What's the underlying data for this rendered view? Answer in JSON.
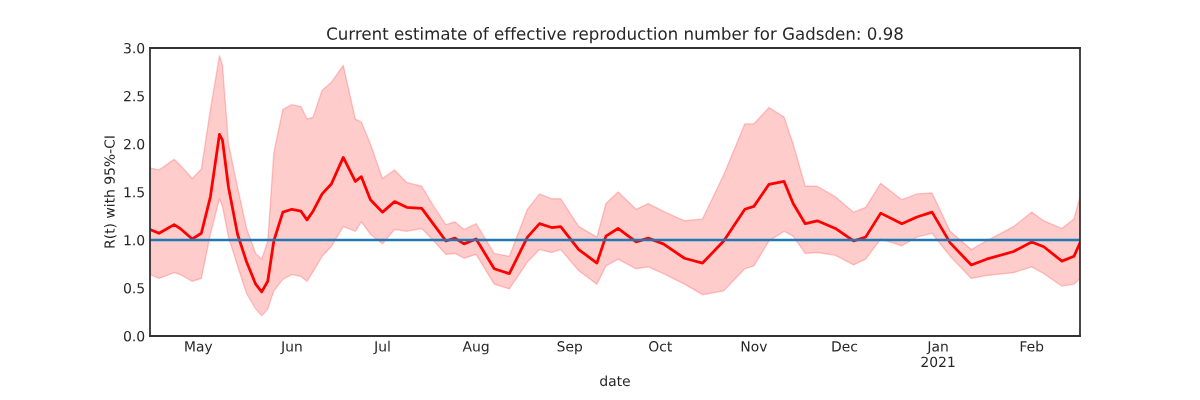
{
  "chart_data": {
    "type": "line",
    "title": "Current estimate of effective reproduction number for Gadsden: 0.98",
    "xlabel": "date",
    "ylabel": "R(t) with 95%-CI",
    "x": [
      "2020-04-15",
      "2020-04-18",
      "2020-04-23",
      "2020-04-25",
      "2020-04-29",
      "2020-05-02",
      "2020-05-05",
      "2020-05-08",
      "2020-05-09",
      "2020-05-11",
      "2020-05-14",
      "2020-05-17",
      "2020-05-20",
      "2020-05-22",
      "2020-05-24",
      "2020-05-26",
      "2020-05-29",
      "2020-06-01",
      "2020-06-04",
      "2020-06-06",
      "2020-06-08",
      "2020-06-11",
      "2020-06-14",
      "2020-06-18",
      "2020-06-22",
      "2020-06-24",
      "2020-06-27",
      "2020-07-01",
      "2020-07-05",
      "2020-07-09",
      "2020-07-14",
      "2020-07-18",
      "2020-07-22",
      "2020-07-25",
      "2020-07-28",
      "2020-08-01",
      "2020-08-07",
      "2020-08-12",
      "2020-08-18",
      "2020-08-22",
      "2020-08-26",
      "2020-08-29",
      "2020-09-04",
      "2020-09-10",
      "2020-09-13",
      "2020-09-17",
      "2020-09-23",
      "2020-09-27",
      "2020-10-02",
      "2020-10-09",
      "2020-10-15",
      "2020-10-22",
      "2020-10-29",
      "2020-11-01",
      "2020-11-06",
      "2020-11-11",
      "2020-11-14",
      "2020-11-18",
      "2020-11-22",
      "2020-11-28",
      "2020-12-04",
      "2020-12-08",
      "2020-12-13",
      "2020-12-20",
      "2020-12-25",
      "2020-12-30",
      "2021-01-05",
      "2021-01-12",
      "2021-01-17",
      "2021-01-26",
      "2021-02-01",
      "2021-02-05",
      "2021-02-11",
      "2021-02-15",
      "2021-02-17"
    ],
    "series": [
      {
        "color": "#ff0000",
        "values": [
          1.11,
          1.07,
          1.16,
          1.12,
          1.01,
          1.07,
          1.45,
          2.1,
          2.04,
          1.55,
          1.06,
          0.77,
          0.54,
          0.46,
          0.57,
          0.99,
          1.29,
          1.32,
          1.3,
          1.21,
          1.3,
          1.48,
          1.58,
          1.86,
          1.61,
          1.66,
          1.42,
          1.29,
          1.4,
          1.34,
          1.33,
          1.16,
          0.99,
          1.02,
          0.96,
          1.01,
          0.7,
          0.65,
          1.03,
          1.17,
          1.13,
          1.14,
          0.9,
          0.76,
          1.04,
          1.12,
          0.98,
          1.02,
          0.96,
          0.81,
          0.76,
          0.99,
          1.32,
          1.35,
          1.58,
          1.61,
          1.38,
          1.17,
          1.2,
          1.12,
          0.99,
          1.03,
          1.28,
          1.17,
          1.24,
          1.29,
          0.97,
          0.74,
          0.8,
          0.88,
          0.98,
          0.93,
          0.78,
          0.83,
          0.97
        ],
        "upper": [
          1.75,
          1.73,
          1.84,
          1.78,
          1.64,
          1.74,
          2.36,
          2.92,
          2.82,
          2.0,
          1.55,
          1.12,
          0.86,
          0.8,
          0.99,
          1.91,
          2.36,
          2.41,
          2.39,
          2.26,
          2.28,
          2.56,
          2.64,
          2.82,
          2.26,
          2.23,
          2.0,
          1.64,
          1.73,
          1.6,
          1.56,
          1.35,
          1.16,
          1.19,
          1.11,
          1.17,
          0.86,
          0.83,
          1.32,
          1.48,
          1.43,
          1.43,
          1.14,
          1.03,
          1.38,
          1.5,
          1.32,
          1.38,
          1.3,
          1.2,
          1.22,
          1.68,
          2.21,
          2.21,
          2.38,
          2.28,
          2.0,
          1.56,
          1.56,
          1.45,
          1.29,
          1.34,
          1.59,
          1.42,
          1.48,
          1.49,
          1.09,
          0.9,
          0.99,
          1.14,
          1.29,
          1.2,
          1.12,
          1.22,
          1.45
        ],
        "lower": [
          0.64,
          0.6,
          0.66,
          0.64,
          0.57,
          0.6,
          1.06,
          1.43,
          1.35,
          1.03,
          0.73,
          0.44,
          0.28,
          0.21,
          0.28,
          0.47,
          0.59,
          0.64,
          0.62,
          0.57,
          0.67,
          0.83,
          0.93,
          1.14,
          1.09,
          1.19,
          1.06,
          0.96,
          1.11,
          1.09,
          1.12,
          0.99,
          0.85,
          0.86,
          0.81,
          0.85,
          0.54,
          0.49,
          0.77,
          0.9,
          0.87,
          0.9,
          0.68,
          0.54,
          0.73,
          0.8,
          0.7,
          0.72,
          0.65,
          0.54,
          0.43,
          0.47,
          0.7,
          0.73,
          0.99,
          1.09,
          1.04,
          0.86,
          0.87,
          0.84,
          0.74,
          0.8,
          1.01,
          0.94,
          1.03,
          1.07,
          0.83,
          0.6,
          0.63,
          0.66,
          0.72,
          0.65,
          0.52,
          0.54,
          0.6
        ]
      }
    ],
    "ref_lines": [
      {
        "axis": "y",
        "value": 1.0,
        "color": "#1f77b4"
      }
    ],
    "xlim": [
      "2020-04-15",
      "2021-02-17"
    ],
    "xticks": [
      {
        "value": "2020-05-01",
        "label": "May"
      },
      {
        "value": "2020-06-01",
        "label": "Jun"
      },
      {
        "value": "2020-07-01",
        "label": "Jul"
      },
      {
        "value": "2020-08-01",
        "label": "Aug"
      },
      {
        "value": "2020-09-01",
        "label": "Sep"
      },
      {
        "value": "2020-10-01",
        "label": "Oct"
      },
      {
        "value": "2020-11-01",
        "label": "Nov"
      },
      {
        "value": "2020-12-01",
        "label": "Dec"
      },
      {
        "value": "2021-01-01",
        "label": "Jan\n2021"
      },
      {
        "value": "2021-02-01",
        "label": "Feb"
      }
    ],
    "ylim": [
      0,
      3.0
    ],
    "yticks": [
      {
        "value": 0,
        "label": "0.0"
      },
      {
        "value": 0.5,
        "label": "0.5"
      },
      {
        "value": 1.0,
        "label": "1.0"
      },
      {
        "value": 1.5,
        "label": "1.5"
      },
      {
        "value": 2.0,
        "label": "2.0"
      },
      {
        "value": 2.5,
        "label": "2.5"
      },
      {
        "value": 3.0,
        "label": "3.0"
      }
    ],
    "grid": false
  }
}
